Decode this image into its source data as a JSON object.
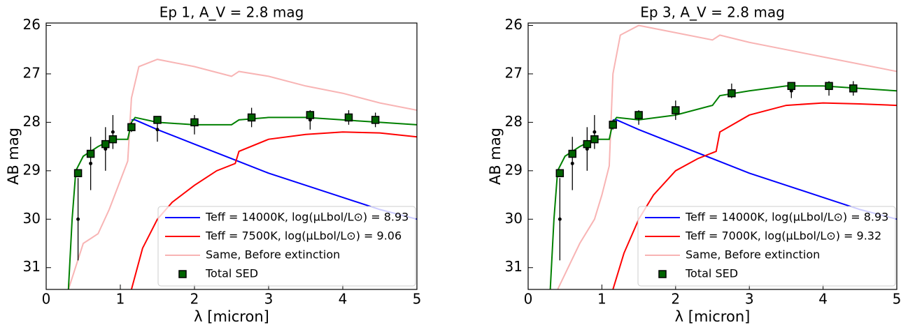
{
  "chart_data": [
    {
      "type": "line",
      "title": "Ep 1, A_V = 2.8 mag",
      "xlabel": "λ [micron]",
      "ylabel": "AB mag",
      "xlim": [
        0,
        5
      ],
      "ylim": [
        31.45,
        25.95
      ],
      "xticks": [
        0,
        1,
        2,
        3,
        4,
        5
      ],
      "yticks": [
        26,
        27,
        28,
        29,
        30,
        31
      ],
      "legend": "lower right",
      "series": [
        {
          "name": "Teff = 14000K, log(μLbol/L⊙) = 8.93",
          "color": "#0000ff",
          "kind": "line",
          "x": [
            1.15,
            1.2,
            1.5,
            2,
            2.5,
            3,
            3.5,
            4,
            4.5,
            5
          ],
          "values": [
            27.95,
            27.95,
            28.15,
            28.45,
            28.75,
            29.05,
            29.3,
            29.55,
            29.8,
            30.0
          ]
        },
        {
          "name": "Teff = 7500K, log(μLbol/L⊙) = 9.06",
          "color": "#ff0000",
          "kind": "line",
          "x": [
            1.15,
            1.3,
            1.5,
            1.7,
            2,
            2.3,
            2.55,
            2.6,
            3,
            3.5,
            4,
            4.5,
            5
          ],
          "values": [
            31.45,
            30.6,
            30.0,
            29.65,
            29.3,
            29.0,
            28.85,
            28.6,
            28.35,
            28.25,
            28.2,
            28.22,
            28.3
          ]
        },
        {
          "name": "Same, Before extinction",
          "color": "#f8b4b4",
          "kind": "line",
          "x": [
            0.3,
            0.5,
            0.7,
            0.85,
            1.0,
            1.1,
            1.15,
            1.25,
            1.5,
            2,
            2.5,
            2.6,
            3,
            3.5,
            4,
            4.5,
            5
          ],
          "values": [
            31.45,
            30.5,
            30.3,
            29.8,
            29.2,
            28.8,
            27.5,
            26.85,
            26.7,
            26.85,
            27.05,
            26.95,
            27.05,
            27.25,
            27.4,
            27.6,
            27.75
          ]
        },
        {
          "color": "#008000",
          "kind": "line",
          "x": [
            0.3,
            0.35,
            0.4,
            0.5,
            0.7,
            0.9,
            1.1,
            1.15,
            1.2,
            1.5,
            2,
            2.5,
            2.6,
            3,
            3.5,
            4,
            4.5,
            5
          ],
          "values": [
            31.45,
            30.0,
            29.0,
            28.7,
            28.5,
            28.35,
            28.35,
            28.0,
            27.9,
            28.0,
            28.05,
            28.05,
            27.95,
            27.9,
            27.9,
            27.95,
            28.0,
            28.05
          ]
        },
        {
          "color": "#000000",
          "kind": "errorbar",
          "x": [
            0.43,
            0.6,
            0.8,
            0.9,
            1.15,
            1.5,
            2.0,
            2.77,
            3.56,
            4.08,
            4.44
          ],
          "values": [
            30.0,
            28.85,
            28.55,
            28.2,
            28.1,
            28.15,
            28.05,
            27.9,
            27.95,
            27.9,
            27.95
          ],
          "errors": [
            0.85,
            0.55,
            0.45,
            0.35,
            0.1,
            0.25,
            0.2,
            0.2,
            0.2,
            0.15,
            0.15
          ]
        },
        {
          "name": "Total SED",
          "color": "#006400",
          "kind": "square",
          "x": [
            0.43,
            0.6,
            0.8,
            0.9,
            1.15,
            1.5,
            2.0,
            2.77,
            3.56,
            4.08,
            4.44
          ],
          "values": [
            29.05,
            28.65,
            28.45,
            28.35,
            28.1,
            27.95,
            28.0,
            27.9,
            27.85,
            27.9,
            27.95
          ]
        }
      ]
    },
    {
      "type": "line",
      "title": "Ep 3, A_V = 2.8 mag",
      "xlabel": "λ [micron]",
      "ylabel": "AB mag",
      "xlim": [
        0,
        5
      ],
      "ylim": [
        31.45,
        25.95
      ],
      "xticks": [
        0,
        1,
        2,
        3,
        4,
        5
      ],
      "yticks": [
        26,
        27,
        28,
        29,
        30,
        31
      ],
      "legend": "lower right",
      "series": [
        {
          "name": "Teff = 14000K, log(μLbol/L⊙) = 8.93",
          "color": "#0000ff",
          "kind": "line",
          "x": [
            1.15,
            1.2,
            1.5,
            2,
            2.5,
            3,
            3.5,
            4,
            4.5,
            5
          ],
          "values": [
            27.95,
            27.95,
            28.15,
            28.45,
            28.75,
            29.05,
            29.3,
            29.55,
            29.8,
            30.0
          ]
        },
        {
          "name": "Teff = 7000K, log(μLbol/L⊙) = 9.32",
          "color": "#ff0000",
          "kind": "line",
          "x": [
            1.15,
            1.3,
            1.5,
            1.7,
            2,
            2.3,
            2.55,
            2.6,
            3,
            3.5,
            4,
            4.5,
            5
          ],
          "values": [
            31.45,
            30.7,
            30.0,
            29.5,
            29.0,
            28.75,
            28.6,
            28.2,
            27.85,
            27.65,
            27.6,
            27.62,
            27.65
          ]
        },
        {
          "name": "Same, Before extinction",
          "color": "#f8b4b4",
          "kind": "line",
          "x": [
            0.4,
            0.7,
            0.9,
            1.0,
            1.1,
            1.15,
            1.25,
            1.5,
            2,
            2.5,
            2.6,
            3,
            3.5,
            4,
            4.5,
            5
          ],
          "values": [
            31.45,
            30.5,
            30.0,
            29.5,
            28.9,
            27.0,
            26.2,
            26.0,
            26.15,
            26.3,
            26.2,
            26.35,
            26.5,
            26.65,
            26.8,
            26.95
          ]
        },
        {
          "color": "#008000",
          "kind": "line",
          "x": [
            0.3,
            0.35,
            0.4,
            0.5,
            0.7,
            0.9,
            1.1,
            1.15,
            1.2,
            1.5,
            2,
            2.5,
            2.6,
            3,
            3.5,
            4,
            4.5,
            5
          ],
          "values": [
            31.45,
            30.0,
            29.0,
            28.7,
            28.5,
            28.35,
            28.35,
            28.0,
            27.9,
            27.95,
            27.85,
            27.65,
            27.45,
            27.35,
            27.25,
            27.25,
            27.3,
            27.35
          ]
        },
        {
          "color": "#000000",
          "kind": "errorbar",
          "x": [
            0.43,
            0.6,
            0.8,
            0.9,
            1.15,
            1.5,
            2.0,
            2.76,
            3.57,
            4.08,
            4.41
          ],
          "values": [
            30.0,
            28.85,
            28.55,
            28.2,
            28.05,
            27.9,
            27.75,
            27.35,
            27.35,
            27.3,
            27.3
          ],
          "errors": [
            0.85,
            0.55,
            0.45,
            0.35,
            0.1,
            0.15,
            0.2,
            0.15,
            0.15,
            0.15,
            0.15
          ]
        },
        {
          "name": "Total SED",
          "color": "#006400",
          "kind": "square",
          "x": [
            0.43,
            0.6,
            0.8,
            0.9,
            1.15,
            1.5,
            2.0,
            2.76,
            3.57,
            4.08,
            4.41
          ],
          "values": [
            29.05,
            28.65,
            28.45,
            28.35,
            28.05,
            27.85,
            27.75,
            27.4,
            27.25,
            27.25,
            27.3
          ]
        }
      ]
    }
  ]
}
